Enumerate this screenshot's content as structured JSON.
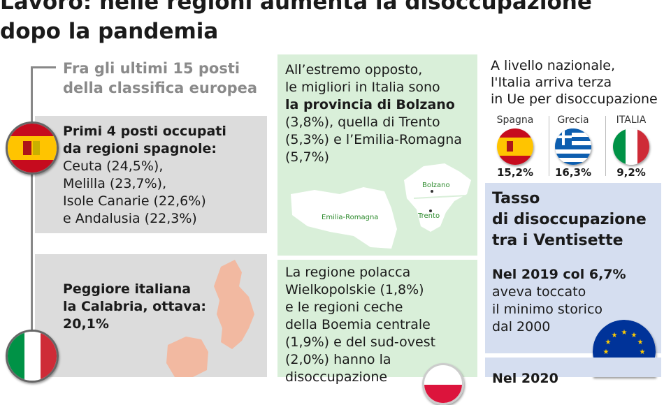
{
  "title": {
    "line1": "Lavoro: nelle regioni aumenta la disoccupazione",
    "line2": "dopo la pandemia"
  },
  "left": {
    "subhead_line1": "Fra gli ultimi 15 posti",
    "subhead_line2": "della classifica europea",
    "spain_box": {
      "heading_line1": "Primi 4 posti occupati",
      "heading_line2": "da regioni spagnole:",
      "regions": [
        "Ceuta  (24,5%),",
        "Melilla (23,7%),",
        "Isole Canarie (22,6%)",
        "e Andalusia (22,3%)"
      ]
    },
    "italy_box": {
      "line1": "Peggiore italiana",
      "line2": "la Calabria, ottava:",
      "line3": "20,1%"
    }
  },
  "middle": {
    "best_box": {
      "line1": "All’estremo opposto,",
      "line2": "le migliori in Italia sono",
      "line3": "la provincia di Bolzano",
      "line4": "(3,8%), quella di Trento",
      "line5": "(5,3%) e l’Emilia-Romagna",
      "line6": "(5,7%)",
      "map_labels": {
        "emilia": "Emilia-Romagna",
        "bolzano": "Bolzano",
        "trento": "Trento"
      }
    },
    "poland_box": {
      "line1": "La regione polacca",
      "line2": "Wielkopolskie (1,8%)",
      "line3": "e le regioni ceche",
      "line4": "della Boemia centrale",
      "line5": "(1,9%) e del sud-ovest",
      "line6": "(2,0%) hanno la",
      "line7": "disoccupazione"
    }
  },
  "right": {
    "national_line1": "A livello nazionale,",
    "national_line2": "l'Italia arriva terza",
    "national_line3": "in Ue per disoccupazione",
    "countries": [
      {
        "name": "Spagna",
        "value": "15,2%"
      },
      {
        "name": "Grecia",
        "value": "16,3%"
      },
      {
        "name": "ITALIA",
        "value": "9,2%"
      }
    ],
    "tasso_line1": "Tasso",
    "tasso_line2": "di disoccupazione",
    "tasso_line3": "tra i Ventisette",
    "record_line1": "Nel 2019 col 6,7%",
    "record_line2": "aveva toccato",
    "record_line3": "il minimo storico",
    "record_line4": "dal 2000",
    "bottom_partial": "Nel 2020"
  },
  "colors": {
    "grey_panel": "#dcdcdc",
    "green_panel": "#d9efd9",
    "blue_panel": "#d5def0",
    "map_orange": "#f2b9a1"
  }
}
